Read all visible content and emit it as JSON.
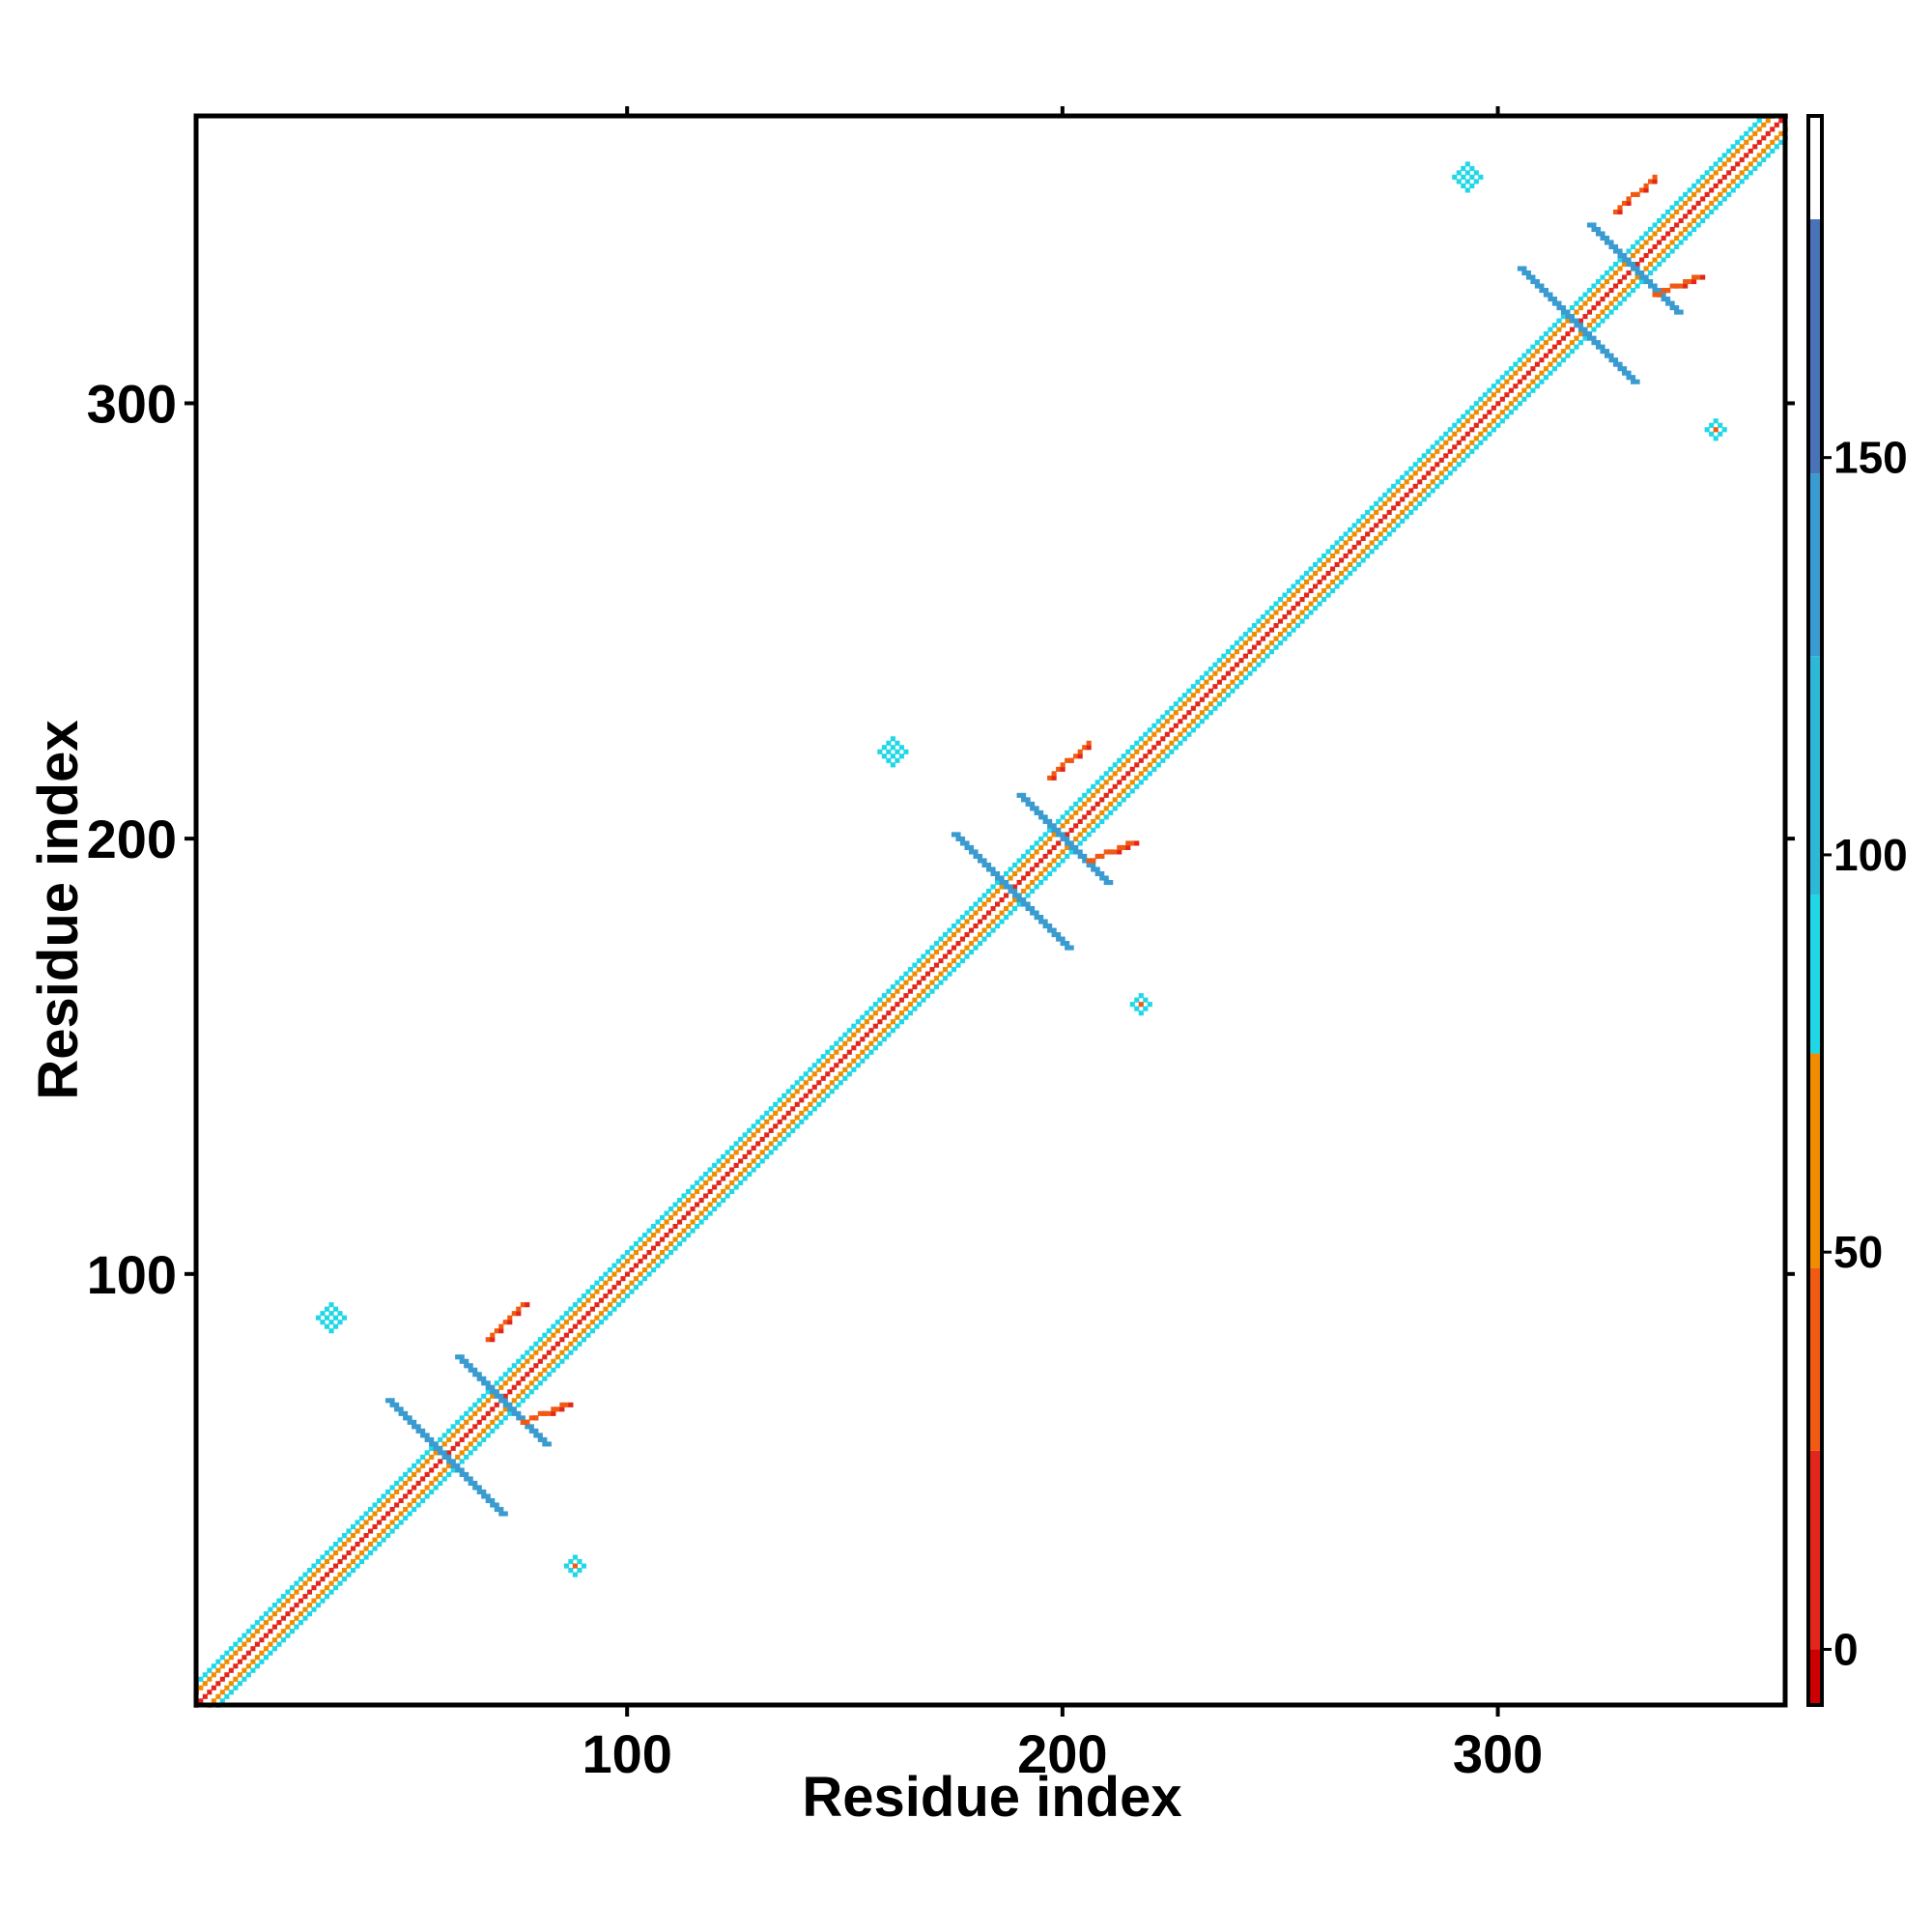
{
  "chart_data": {
    "type": "heatmap",
    "title": "",
    "xlabel": "Residue index",
    "ylabel": "Residue index",
    "xlim": [
      1,
      366
    ],
    "ylim": [
      1,
      366
    ],
    "x_ticks": [
      100,
      200,
      300
    ],
    "y_ticks": [
      100,
      200,
      300
    ],
    "grid": false,
    "colorbar": {
      "position": "right",
      "ticks": [
        0,
        50,
        100,
        150
      ],
      "range": [
        -7,
        193
      ],
      "bands": [
        {
          "from": -7,
          "to": 0,
          "color": "#cc0000"
        },
        {
          "from": 0,
          "to": 25,
          "color": "#e3261b"
        },
        {
          "from": 25,
          "to": 48,
          "color": "#f05a12"
        },
        {
          "from": 48,
          "to": 75,
          "color": "#f08c00"
        },
        {
          "from": 75,
          "to": 95,
          "color": "#1fd7e6"
        },
        {
          "from": 95,
          "to": 125,
          "color": "#2eb8d8"
        },
        {
          "from": 125,
          "to": 148,
          "color": "#3a9bd0"
        },
        {
          "from": 148,
          "to": 180,
          "color": "#4a72b8"
        },
        {
          "from": 180,
          "to": 193,
          "color": "#ffffff"
        }
      ]
    },
    "features": [
      {
        "kind": "diagonal",
        "from": 1,
        "to": 366,
        "color": "#e3261b"
      },
      {
        "kind": "diagonal-band",
        "from": 2,
        "to": 366,
        "width": 3,
        "color": "#f08c00"
      },
      {
        "kind": "diagonal-band",
        "from": 2,
        "to": 366,
        "width": 5,
        "color": "#1fd7e6"
      },
      {
        "kind": "antidiagonal",
        "center": [
          58,
          58
        ],
        "half_length": 13,
        "color": "#3a9bd0"
      },
      {
        "kind": "antidiagonal",
        "center": [
          71,
          71
        ],
        "half_length": 10,
        "color": "#3a9bd0"
      },
      {
        "kind": "antidiagonal",
        "center": [
          188,
          188
        ],
        "half_length": 13,
        "color": "#3a9bd0"
      },
      {
        "kind": "antidiagonal",
        "center": [
          200,
          200
        ],
        "half_length": 10,
        "color": "#3a9bd0"
      },
      {
        "kind": "antidiagonal",
        "center": [
          318,
          318
        ],
        "half_length": 13,
        "color": "#3a9bd0"
      },
      {
        "kind": "antidiagonal",
        "center": [
          331,
          331
        ],
        "half_length": 10,
        "color": "#3a9bd0"
      },
      {
        "kind": "parallel",
        "start": [
          68,
          85
        ],
        "end": [
          76,
          93
        ],
        "color": "#f05a12"
      },
      {
        "kind": "parallel",
        "start": [
          76,
          66
        ],
        "end": [
          86,
          70
        ],
        "color": "#f05a12"
      },
      {
        "kind": "parallel",
        "start": [
          197,
          214
        ],
        "end": [
          206,
          222
        ],
        "color": "#f05a12"
      },
      {
        "kind": "parallel",
        "start": [
          206,
          195
        ],
        "end": [
          216,
          199
        ],
        "color": "#f05a12"
      },
      {
        "kind": "parallel",
        "start": [
          327,
          344
        ],
        "end": [
          336,
          352
        ],
        "color": "#f05a12"
      },
      {
        "kind": "parallel",
        "start": [
          336,
          325
        ],
        "end": [
          346,
          329
        ],
        "color": "#f05a12"
      },
      {
        "kind": "cluster",
        "center": [
          32,
          90
        ],
        "size": 3,
        "color": "#1fd7e6"
      },
      {
        "kind": "cluster",
        "center": [
          88,
          33
        ],
        "size": 3,
        "color": "#1fd7e6"
      },
      {
        "kind": "cluster",
        "center": [
          161,
          220
        ],
        "size": 3,
        "color": "#1fd7e6"
      },
      {
        "kind": "cluster",
        "center": [
          218,
          162
        ],
        "size": 3,
        "color": "#1fd7e6"
      },
      {
        "kind": "cluster",
        "center": [
          293,
          352
        ],
        "size": 3,
        "color": "#1fd7e6"
      },
      {
        "kind": "cluster",
        "center": [
          350,
          294
        ],
        "size": 3,
        "color": "#1fd7e6"
      }
    ]
  }
}
